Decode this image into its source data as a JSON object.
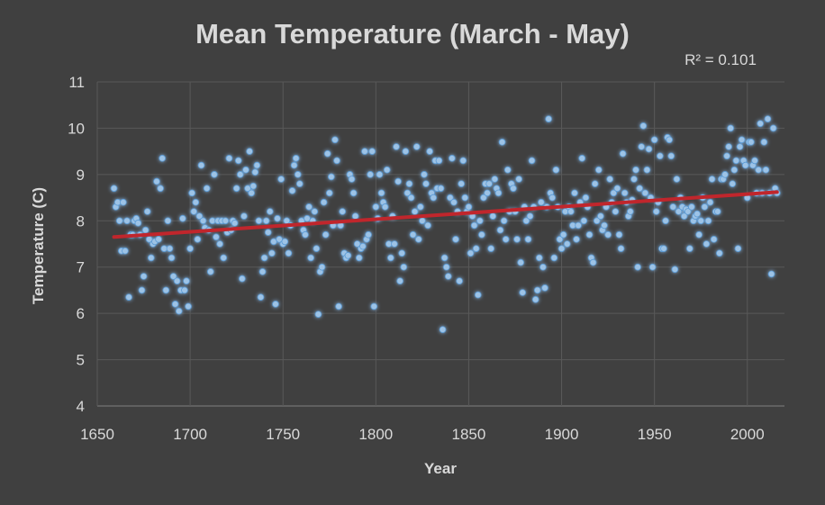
{
  "chart_data": {
    "type": "scatter",
    "title": "Mean Temperature (March - May)",
    "xlabel": "Year",
    "ylabel": "Temperature (C)",
    "xlim": [
      1650,
      2020
    ],
    "ylim": [
      4,
      11
    ],
    "x_ticks": [
      1650,
      1700,
      1750,
      1800,
      1850,
      1900,
      1950,
      2000
    ],
    "y_ticks": [
      4,
      5,
      6,
      7,
      8,
      9,
      10,
      11
    ],
    "grid": true,
    "series_color": "#9dc3e6",
    "trendline": {
      "type": "linear",
      "color": "#c0262c",
      "x_start": 1659,
      "y_start": 7.65,
      "x_end": 2016,
      "y_end": 8.62,
      "r_squared_label": "R² = 0.101"
    },
    "points": [
      [
        1659,
        8.7
      ],
      [
        1660,
        8.3
      ],
      [
        1661,
        8.4
      ],
      [
        1662,
        8.0
      ],
      [
        1663,
        7.35
      ],
      [
        1664,
        8.4
      ],
      [
        1665,
        7.35
      ],
      [
        1666,
        8.0
      ],
      [
        1667,
        6.35
      ],
      [
        1668,
        7.7
      ],
      [
        1669,
        7.7
      ],
      [
        1670,
        8.0
      ],
      [
        1671,
        8.05
      ],
      [
        1672,
        7.95
      ],
      [
        1673,
        7.7
      ],
      [
        1674,
        6.5
      ],
      [
        1675,
        6.8
      ],
      [
        1676,
        7.8
      ],
      [
        1677,
        8.2
      ],
      [
        1678,
        7.6
      ],
      [
        1679,
        7.2
      ],
      [
        1680,
        7.5
      ],
      [
        1681,
        7.55
      ],
      [
        1682,
        8.85
      ],
      [
        1683,
        7.6
      ],
      [
        1684,
        8.7
      ],
      [
        1685,
        9.35
      ],
      [
        1686,
        7.4
      ],
      [
        1687,
        6.5
      ],
      [
        1688,
        8.0
      ],
      [
        1689,
        7.4
      ],
      [
        1690,
        7.2
      ],
      [
        1691,
        6.8
      ],
      [
        1692,
        6.2
      ],
      [
        1693,
        6.7
      ],
      [
        1694,
        6.05
      ],
      [
        1695,
        6.5
      ],
      [
        1696,
        8.05
      ],
      [
        1697,
        6.5
      ],
      [
        1698,
        6.7
      ],
      [
        1699,
        6.15
      ],
      [
        1700,
        7.4
      ],
      [
        1701,
        8.6
      ],
      [
        1702,
        8.2
      ],
      [
        1703,
        8.4
      ],
      [
        1704,
        7.6
      ],
      [
        1705,
        8.1
      ],
      [
        1706,
        9.2
      ],
      [
        1707,
        8.0
      ],
      [
        1708,
        7.85
      ],
      [
        1709,
        8.7
      ],
      [
        1710,
        7.8
      ],
      [
        1711,
        6.9
      ],
      [
        1712,
        8.0
      ],
      [
        1713,
        9.0
      ],
      [
        1714,
        7.65
      ],
      [
        1715,
        8.0
      ],
      [
        1716,
        7.5
      ],
      [
        1717,
        8.0
      ],
      [
        1718,
        7.2
      ],
      [
        1719,
        8.0
      ],
      [
        1720,
        7.75
      ],
      [
        1721,
        9.35
      ],
      [
        1722,
        7.8
      ],
      [
        1723,
        8.0
      ],
      [
        1724,
        7.95
      ],
      [
        1725,
        8.7
      ],
      [
        1726,
        9.3
      ],
      [
        1727,
        9.0
      ],
      [
        1728,
        6.75
      ],
      [
        1729,
        8.1
      ],
      [
        1730,
        9.1
      ],
      [
        1731,
        8.7
      ],
      [
        1732,
        9.5
      ],
      [
        1733,
        8.6
      ],
      [
        1734,
        8.75
      ],
      [
        1735,
        9.05
      ],
      [
        1736,
        9.2
      ],
      [
        1737,
        8.0
      ],
      [
        1738,
        6.35
      ],
      [
        1739,
        6.9
      ],
      [
        1740,
        7.2
      ],
      [
        1741,
        8.0
      ],
      [
        1742,
        7.75
      ],
      [
        1743,
        8.2
      ],
      [
        1744,
        7.3
      ],
      [
        1745,
        7.55
      ],
      [
        1746,
        6.2
      ],
      [
        1747,
        8.05
      ],
      [
        1748,
        7.6
      ],
      [
        1749,
        8.9
      ],
      [
        1750,
        7.5
      ],
      [
        1751,
        7.55
      ],
      [
        1752,
        8.0
      ],
      [
        1753,
        7.3
      ],
      [
        1754,
        7.9
      ],
      [
        1755,
        8.65
      ],
      [
        1756,
        9.2
      ],
      [
        1757,
        9.35
      ],
      [
        1758,
        9.0
      ],
      [
        1759,
        8.8
      ],
      [
        1760,
        8.0
      ],
      [
        1761,
        7.8
      ],
      [
        1762,
        7.7
      ],
      [
        1763,
        8.05
      ],
      [
        1764,
        8.3
      ],
      [
        1765,
        7.2
      ],
      [
        1766,
        8.0
      ],
      [
        1767,
        8.2
      ],
      [
        1768,
        7.4
      ],
      [
        1769,
        5.98
      ],
      [
        1770,
        6.9
      ],
      [
        1771,
        7.0
      ],
      [
        1772,
        8.4
      ],
      [
        1773,
        7.7
      ],
      [
        1774,
        9.45
      ],
      [
        1775,
        8.6
      ],
      [
        1776,
        8.95
      ],
      [
        1777,
        7.9
      ],
      [
        1778,
        9.75
      ],
      [
        1779,
        9.3
      ],
      [
        1780,
        6.15
      ],
      [
        1781,
        7.9
      ],
      [
        1782,
        8.2
      ],
      [
        1783,
        7.3
      ],
      [
        1784,
        7.2
      ],
      [
        1785,
        7.25
      ],
      [
        1786,
        9.0
      ],
      [
        1787,
        8.9
      ],
      [
        1788,
        8.6
      ],
      [
        1789,
        8.1
      ],
      [
        1790,
        7.5
      ],
      [
        1791,
        7.2
      ],
      [
        1792,
        7.4
      ],
      [
        1793,
        7.45
      ],
      [
        1794,
        9.5
      ],
      [
        1795,
        7.6
      ],
      [
        1796,
        7.7
      ],
      [
        1797,
        9.0
      ],
      [
        1798,
        9.5
      ],
      [
        1799,
        6.15
      ],
      [
        1800,
        8.3
      ],
      [
        1801,
        8.05
      ],
      [
        1802,
        9.0
      ],
      [
        1803,
        8.6
      ],
      [
        1804,
        8.4
      ],
      [
        1805,
        8.3
      ],
      [
        1806,
        9.1
      ],
      [
        1807,
        7.5
      ],
      [
        1808,
        7.2
      ],
      [
        1809,
        8.1
      ],
      [
        1810,
        7.5
      ],
      [
        1811,
        9.6
      ],
      [
        1812,
        8.85
      ],
      [
        1813,
        6.7
      ],
      [
        1814,
        7.3
      ],
      [
        1815,
        7.0
      ],
      [
        1816,
        9.5
      ],
      [
        1817,
        8.6
      ],
      [
        1818,
        8.8
      ],
      [
        1819,
        8.5
      ],
      [
        1820,
        7.7
      ],
      [
        1821,
        8.2
      ],
      [
        1822,
        9.6
      ],
      [
        1823,
        7.6
      ],
      [
        1824,
        8.3
      ],
      [
        1825,
        8.0
      ],
      [
        1826,
        9.0
      ],
      [
        1827,
        8.8
      ],
      [
        1828,
        7.9
      ],
      [
        1829,
        9.5
      ],
      [
        1830,
        8.6
      ],
      [
        1831,
        8.5
      ],
      [
        1832,
        9.3
      ],
      [
        1833,
        8.7
      ],
      [
        1834,
        9.3
      ],
      [
        1835,
        8.7
      ],
      [
        1836,
        5.65
      ],
      [
        1837,
        7.2
      ],
      [
        1838,
        7.0
      ],
      [
        1839,
        6.8
      ],
      [
        1840,
        8.5
      ],
      [
        1841,
        9.35
      ],
      [
        1842,
        8.4
      ],
      [
        1843,
        7.6
      ],
      [
        1844,
        8.2
      ],
      [
        1845,
        6.7
      ],
      [
        1846,
        8.8
      ],
      [
        1847,
        9.3
      ],
      [
        1848,
        8.5
      ],
      [
        1849,
        8.2
      ],
      [
        1850,
        8.3
      ],
      [
        1851,
        7.3
      ],
      [
        1852,
        8.1
      ],
      [
        1853,
        7.9
      ],
      [
        1854,
        7.4
      ],
      [
        1855,
        6.4
      ],
      [
        1856,
        8.0
      ],
      [
        1857,
        7.7
      ],
      [
        1858,
        8.5
      ],
      [
        1859,
        8.8
      ],
      [
        1860,
        8.6
      ],
      [
        1861,
        8.8
      ],
      [
        1862,
        7.4
      ],
      [
        1863,
        8.1
      ],
      [
        1864,
        8.9
      ],
      [
        1865,
        8.7
      ],
      [
        1866,
        8.6
      ],
      [
        1867,
        7.8
      ],
      [
        1868,
        9.7
      ],
      [
        1869,
        8.0
      ],
      [
        1870,
        7.6
      ],
      [
        1871,
        9.1
      ],
      [
        1872,
        8.2
      ],
      [
        1873,
        8.8
      ],
      [
        1874,
        8.7
      ],
      [
        1875,
        8.2
      ],
      [
        1876,
        7.6
      ],
      [
        1877,
        8.9
      ],
      [
        1878,
        7.1
      ],
      [
        1879,
        6.45
      ],
      [
        1880,
        8.3
      ],
      [
        1881,
        8.0
      ],
      [
        1882,
        7.6
      ],
      [
        1883,
        8.1
      ],
      [
        1884,
        9.3
      ],
      [
        1885,
        8.3
      ],
      [
        1886,
        6.3
      ],
      [
        1887,
        6.5
      ],
      [
        1888,
        7.2
      ],
      [
        1889,
        8.4
      ],
      [
        1890,
        7.0
      ],
      [
        1891,
        6.55
      ],
      [
        1892,
        8.3
      ],
      [
        1893,
        10.2
      ],
      [
        1894,
        8.6
      ],
      [
        1895,
        8.5
      ],
      [
        1896,
        7.2
      ],
      [
        1897,
        9.1
      ],
      [
        1898,
        8.3
      ],
      [
        1899,
        7.6
      ],
      [
        1900,
        7.4
      ],
      [
        1901,
        7.7
      ],
      [
        1902,
        8.2
      ],
      [
        1903,
        7.5
      ],
      [
        1904,
        8.3
      ],
      [
        1905,
        8.2
      ],
      [
        1906,
        7.9
      ],
      [
        1907,
        8.6
      ],
      [
        1908,
        7.6
      ],
      [
        1909,
        7.9
      ],
      [
        1910,
        8.4
      ],
      [
        1911,
        9.35
      ],
      [
        1912,
        8.0
      ],
      [
        1913,
        8.5
      ],
      [
        1914,
        8.3
      ],
      [
        1915,
        7.7
      ],
      [
        1916,
        7.2
      ],
      [
        1917,
        7.1
      ],
      [
        1918,
        8.8
      ],
      [
        1919,
        8.0
      ],
      [
        1920,
        9.1
      ],
      [
        1921,
        8.1
      ],
      [
        1922,
        7.8
      ],
      [
        1923,
        7.9
      ],
      [
        1924,
        8.3
      ],
      [
        1925,
        7.7
      ],
      [
        1926,
        8.9
      ],
      [
        1927,
        8.4
      ],
      [
        1928,
        8.6
      ],
      [
        1929,
        8.2
      ],
      [
        1930,
        8.7
      ],
      [
        1931,
        7.7
      ],
      [
        1932,
        7.4
      ],
      [
        1933,
        9.45
      ],
      [
        1934,
        8.6
      ],
      [
        1935,
        8.4
      ],
      [
        1936,
        8.1
      ],
      [
        1937,
        8.2
      ],
      [
        1938,
        8.45
      ],
      [
        1939,
        8.9
      ],
      [
        1940,
        9.1
      ],
      [
        1941,
        7.0
      ],
      [
        1942,
        8.7
      ],
      [
        1943,
        9.6
      ],
      [
        1944,
        10.05
      ],
      [
        1945,
        8.6
      ],
      [
        1946,
        9.1
      ],
      [
        1947,
        9.55
      ],
      [
        1948,
        8.5
      ],
      [
        1949,
        7.0
      ],
      [
        1950,
        9.75
      ],
      [
        1951,
        8.2
      ],
      [
        1952,
        8.4
      ],
      [
        1953,
        9.4
      ],
      [
        1954,
        7.4
      ],
      [
        1955,
        7.4
      ],
      [
        1956,
        8.0
      ],
      [
        1957,
        9.8
      ],
      [
        1958,
        9.75
      ],
      [
        1959,
        9.4
      ],
      [
        1960,
        8.3
      ],
      [
        1961,
        6.95
      ],
      [
        1962,
        8.9
      ],
      [
        1963,
        8.2
      ],
      [
        1964,
        8.5
      ],
      [
        1965,
        8.3
      ],
      [
        1966,
        8.1
      ],
      [
        1967,
        8.25
      ],
      [
        1968,
        8.2
      ],
      [
        1969,
        7.4
      ],
      [
        1970,
        8.3
      ],
      [
        1971,
        8.0
      ],
      [
        1972,
        8.1
      ],
      [
        1973,
        8.15
      ],
      [
        1974,
        7.7
      ],
      [
        1975,
        8.0
      ],
      [
        1976,
        8.5
      ],
      [
        1977,
        8.3
      ],
      [
        1978,
        7.5
      ],
      [
        1979,
        8.0
      ],
      [
        1980,
        8.4
      ],
      [
        1981,
        8.9
      ],
      [
        1982,
        7.6
      ],
      [
        1983,
        8.2
      ],
      [
        1984,
        8.2
      ],
      [
        1985,
        7.3
      ],
      [
        1986,
        8.9
      ],
      [
        1987,
        8.9
      ],
      [
        1988,
        9.0
      ],
      [
        1989,
        9.4
      ],
      [
        1990,
        9.6
      ],
      [
        1991,
        10.0
      ],
      [
        1992,
        8.8
      ],
      [
        1993,
        9.1
      ],
      [
        1994,
        9.3
      ],
      [
        1995,
        7.4
      ],
      [
        1996,
        9.6
      ],
      [
        1997,
        9.75
      ],
      [
        1998,
        9.3
      ],
      [
        1999,
        9.2
      ],
      [
        2000,
        8.5
      ],
      [
        2001,
        9.7
      ],
      [
        2002,
        9.7
      ],
      [
        2003,
        9.2
      ],
      [
        2004,
        9.3
      ],
      [
        2005,
        8.6
      ],
      [
        2006,
        9.1
      ],
      [
        2007,
        10.1
      ],
      [
        2008,
        8.6
      ],
      [
        2009,
        9.7
      ],
      [
        2010,
        9.1
      ],
      [
        2011,
        10.2
      ],
      [
        2012,
        8.6
      ],
      [
        2013,
        6.85
      ],
      [
        2014,
        10.0
      ],
      [
        2015,
        8.7
      ],
      [
        2016,
        8.6
      ]
    ]
  }
}
